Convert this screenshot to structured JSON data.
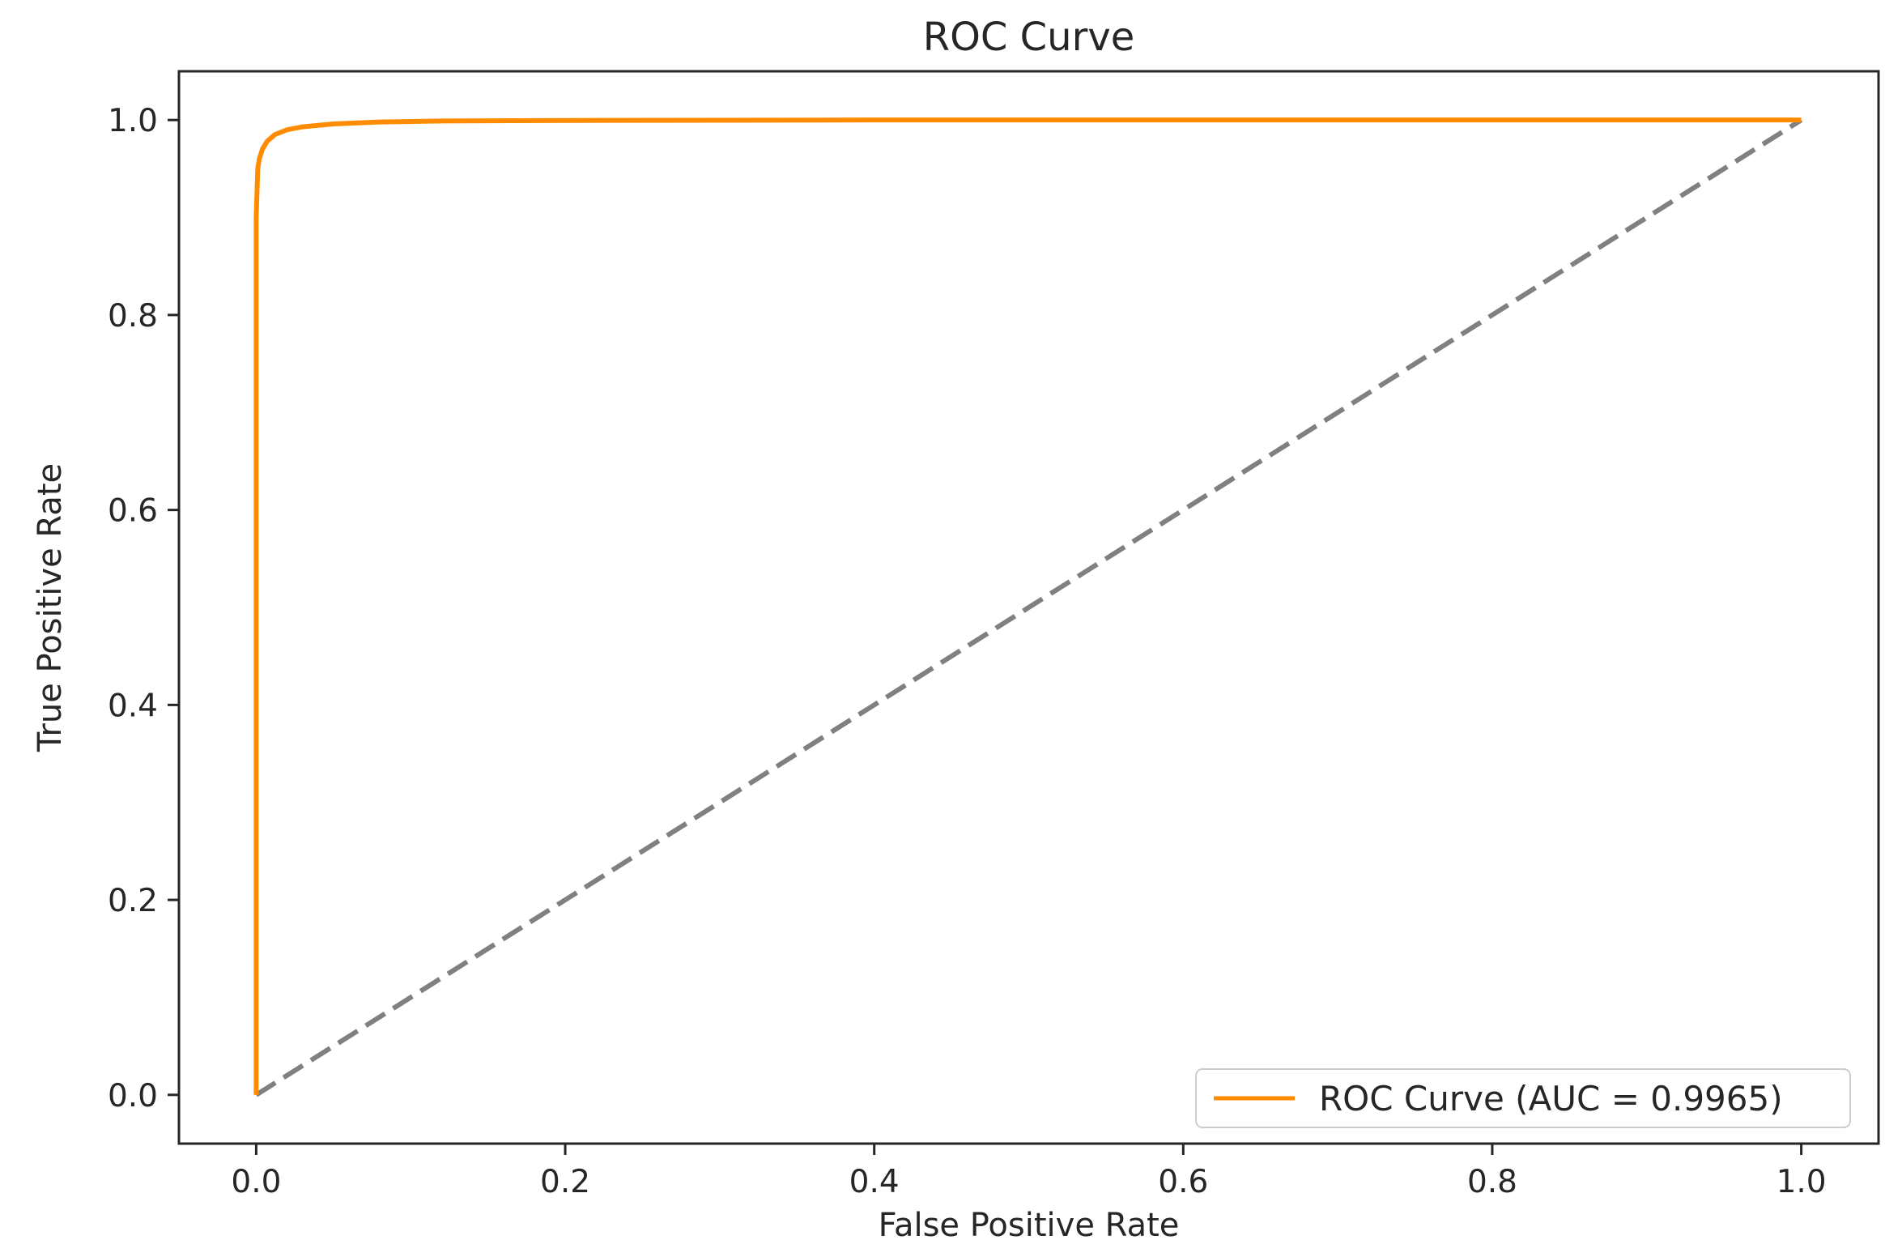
{
  "chart_data": {
    "type": "line",
    "title": "ROC Curve",
    "xlabel": "False Positive Rate",
    "ylabel": "True Positive Rate",
    "xlim": [
      -0.05,
      1.05
    ],
    "ylim": [
      -0.05,
      1.05
    ],
    "x_ticks": [
      0.0,
      0.2,
      0.4,
      0.6,
      0.8,
      1.0
    ],
    "x_tick_labels": [
      "0.0",
      "0.2",
      "0.4",
      "0.6",
      "0.8",
      "1.0"
    ],
    "y_ticks": [
      0.0,
      0.2,
      0.4,
      0.6,
      0.8,
      1.0
    ],
    "y_tick_labels": [
      "0.0",
      "0.2",
      "0.4",
      "0.6",
      "0.8",
      "1.0"
    ],
    "grid": false,
    "legend": {
      "position": "lower-right",
      "entries": [
        "ROC Curve (AUC = 0.9965)"
      ]
    },
    "series": [
      {
        "name": "ROC Curve (AUC = 0.9965)",
        "color": "#ff8c00",
        "style": "solid",
        "x": [
          0.0,
          0.0,
          0.0,
          0.001,
          0.002,
          0.004,
          0.007,
          0.012,
          0.02,
          0.03,
          0.05,
          0.08,
          0.12,
          0.2,
          0.4,
          0.6,
          0.8,
          1.0
        ],
        "y": [
          0.0,
          0.5,
          0.9,
          0.95,
          0.96,
          0.97,
          0.978,
          0.985,
          0.99,
          0.993,
          0.996,
          0.998,
          0.999,
          0.9995,
          1.0,
          1.0,
          1.0,
          1.0
        ]
      },
      {
        "color": "#808080",
        "style": "dashed",
        "x": [
          0.0,
          1.0
        ],
        "y": [
          0.0,
          1.0
        ]
      }
    ]
  }
}
